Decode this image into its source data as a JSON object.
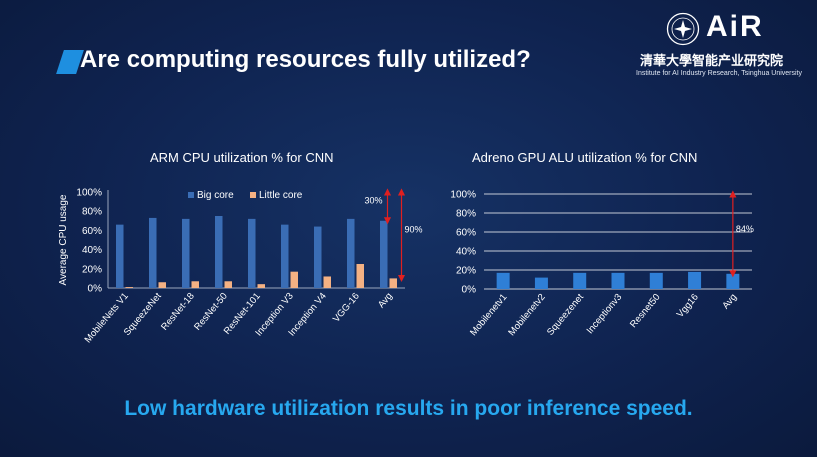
{
  "slide": {
    "title": "Are computing resources fully utilized?",
    "logo": {
      "brand": "AiR",
      "name_cn": "清華大學智能产业研究院",
      "name_en": "Institute for AI Industry Research, Tsinghua University"
    },
    "conclusion": "Low hardware utilization results in poor inference speed.",
    "colors": {
      "accent": "#1e8fe0",
      "conclusion": "#27a8ef",
      "big_core": "#3a6db5",
      "little_core": "#f4b183",
      "gpu_bar": "#2f7fd6",
      "annotation_arrow": "#e02020"
    }
  },
  "chart_data": [
    {
      "type": "bar",
      "title": "ARM CPU utilization % for CNN",
      "ylabel": "Average CPU usage",
      "xlabel": "",
      "ylim": [
        0,
        100
      ],
      "yticks": [
        "0%",
        "20%",
        "40%",
        "60%",
        "80%",
        "100%"
      ],
      "grid": false,
      "legend": "top",
      "categories": [
        "MobileNets V1",
        "SqueezeNet",
        "ResNet-18",
        "ResNet-50",
        "ResNet-101",
        "Inception V3",
        "Inception V4",
        "VGG-16",
        "Avg"
      ],
      "series": [
        {
          "name": "Big core",
          "values": [
            66,
            73,
            72,
            75,
            72,
            66,
            64,
            72,
            70
          ]
        },
        {
          "name": "Little core",
          "values": [
            1,
            6,
            7,
            7,
            4,
            17,
            12,
            25,
            10
          ]
        }
      ],
      "annotations": [
        {
          "label": "30%",
          "from": 70,
          "to": 100,
          "category": "Avg"
        },
        {
          "label": "90%",
          "from": 10,
          "to": 100,
          "category": "Avg"
        }
      ]
    },
    {
      "type": "bar",
      "title": "Adreno GPU ALU utilization % for CNN",
      "ylabel": "",
      "xlabel": "",
      "ylim": [
        0,
        100
      ],
      "yticks": [
        "0%",
        "20%",
        "40%",
        "60%",
        "80%",
        "100%"
      ],
      "grid": true,
      "categories": [
        "Mobilenetv1",
        "Mobilenetv2",
        "Squeezenet",
        "Inceptionv3",
        "Resnet50",
        "Vgg16",
        "Avg"
      ],
      "series": [
        {
          "values": [
            17,
            12,
            17,
            17,
            17,
            18,
            16
          ]
        }
      ],
      "annotations": [
        {
          "label": "84%",
          "from": 16,
          "to": 100,
          "category": "Avg"
        }
      ]
    }
  ]
}
